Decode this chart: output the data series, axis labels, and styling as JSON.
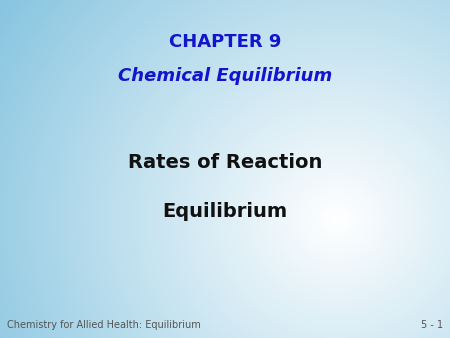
{
  "title_line1": "CHAPTER 9",
  "title_line2": "Chemical Equilibrium",
  "body_line1": "Rates of Reaction",
  "body_line2": "Equilibrium",
  "footer_left": "Chemistry for Allied Health: Equilibrium",
  "footer_right": "5 - 1",
  "title_color": "#1414CC",
  "body_color": "#111111",
  "footer_color": "#555555",
  "bg_color_center": "#ffffff",
  "bg_color_edge": "#7BBFDD",
  "title_fontsize": 13,
  "body_fontsize": 14,
  "footer_fontsize": 7
}
